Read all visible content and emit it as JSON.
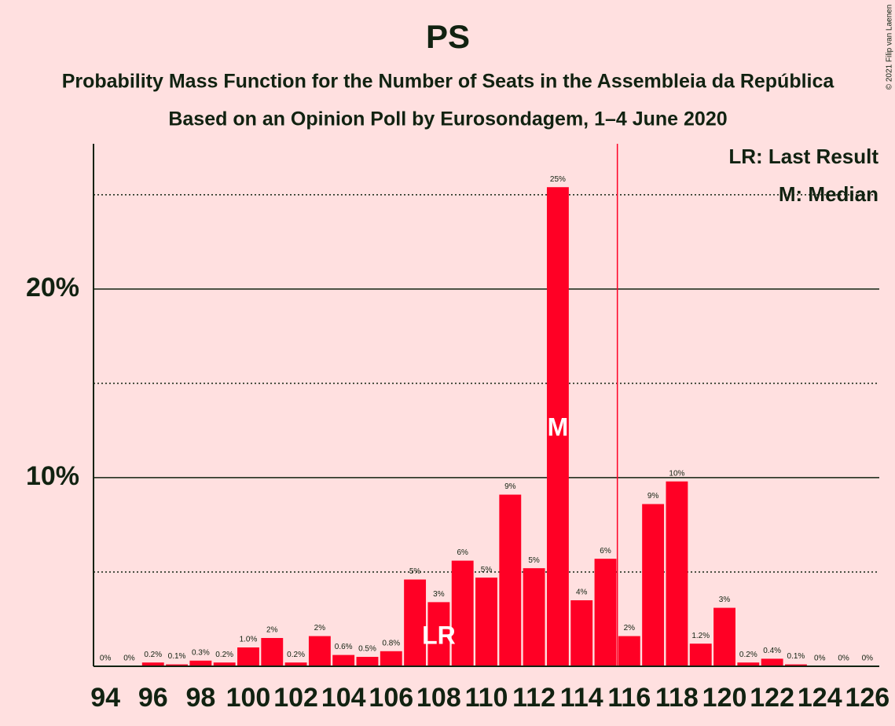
{
  "chart_data": {
    "type": "bar",
    "title": "PS",
    "subtitle": "Probability Mass Function for the Number of Seats in the Assembleia da República",
    "subtitle2": "Based on an Opinion Poll by Eurosondagem, 1–4 June 2020",
    "credit": "© 2021 Filip van Laenen",
    "color": "#ff0025",
    "x": [
      94,
      95,
      96,
      97,
      98,
      99,
      100,
      101,
      102,
      103,
      104,
      105,
      106,
      107,
      108,
      109,
      110,
      111,
      112,
      113,
      114,
      115,
      116,
      117,
      118,
      119,
      120,
      121,
      122,
      123,
      124,
      125,
      126
    ],
    "values": [
      0,
      0,
      0.2,
      0.1,
      0.3,
      0.2,
      1.0,
      1.5,
      0.2,
      1.6,
      0.6,
      0.5,
      0.8,
      4.6,
      3.4,
      5.6,
      4.7,
      9.1,
      5.2,
      25.4,
      3.5,
      5.7,
      1.6,
      8.6,
      9.8,
      1.2,
      3.1,
      0.2,
      0.4,
      0.1,
      0,
      0,
      0
    ],
    "value_labels": [
      "0%",
      "0%",
      "0.2%",
      "0.1%",
      "0.3%",
      "0.2%",
      "1.0%",
      "2%",
      "0.2%",
      "2%",
      "0.6%",
      "0.5%",
      "0.8%",
      "5%",
      "3%",
      "6%",
      "5%",
      "9%",
      "5%",
      "25%",
      "4%",
      "6%",
      "2%",
      "9%",
      "10%",
      "1.2%",
      "3%",
      "0.2%",
      "0.4%",
      "0.1%",
      "0%",
      "0%",
      "0%"
    ],
    "xlim": [
      93.5,
      126.5
    ],
    "xticks": [
      94,
      96,
      98,
      100,
      102,
      104,
      106,
      108,
      110,
      112,
      114,
      116,
      118,
      120,
      122,
      124,
      126
    ],
    "ylim": [
      0,
      27.7
    ],
    "yticks": [
      {
        "value": 10,
        "label": "10%"
      },
      {
        "value": 20,
        "label": "20%"
      }
    ],
    "minor_yticks": [
      5,
      15,
      25
    ],
    "grid": true,
    "majority_line": 115.5,
    "majority_color": "#ff0025",
    "last_result": {
      "x": 108,
      "label": "LR"
    },
    "median": {
      "x": 113,
      "label": "M"
    },
    "legend": [
      "LR: Last Result",
      "M: Median"
    ]
  }
}
